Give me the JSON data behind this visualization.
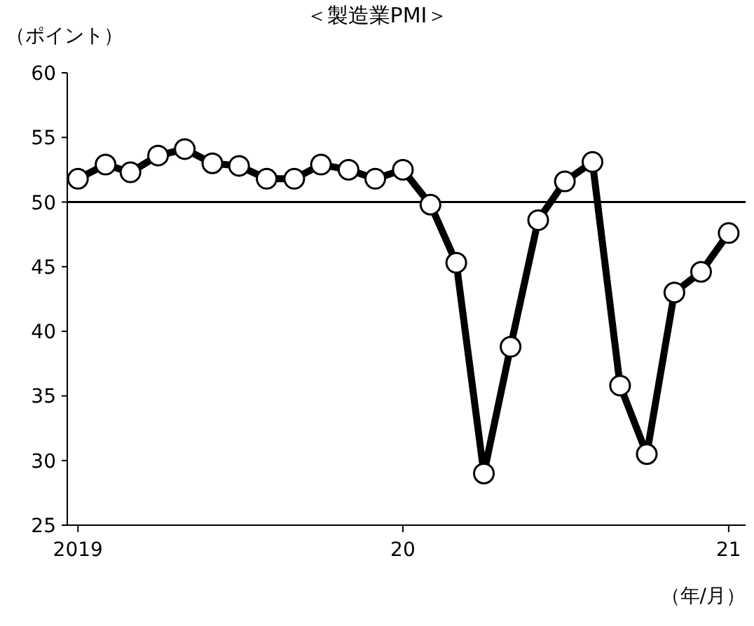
{
  "chart_data": {
    "type": "line",
    "title": "＜製造業PMI＞",
    "ylabel": "（ポイント）",
    "xlabel": "（年/月）",
    "x": [
      "2019-01",
      "2019-02",
      "2019-03",
      "2019-04",
      "2019-05",
      "2019-06",
      "2019-07",
      "2019-08",
      "2019-09",
      "2019-10",
      "2019-11",
      "2019-12",
      "2020-01",
      "2020-02",
      "2020-03",
      "2020-04",
      "2020-05",
      "2020-06",
      "2020-07",
      "2020-08",
      "2020-09",
      "2020-10",
      "2020-11",
      "2020-12",
      "2021-01"
    ],
    "series": [
      {
        "color": "#000000",
        "values": [
          51.8,
          52.9,
          52.3,
          53.6,
          54.1,
          53.0,
          52.8,
          51.8,
          51.8,
          52.9,
          52.5,
          51.8,
          52.5,
          49.8,
          45.3,
          29.0,
          38.8,
          48.6,
          51.6,
          53.1,
          35.8,
          30.5,
          43.0,
          44.6,
          47.6
        ]
      }
    ],
    "xlim": [
      "2018-12-20",
      "2021-01-20"
    ],
    "xticks": [
      {
        "value": "2019-01",
        "label": "2019"
      },
      {
        "value": "2020-01",
        "label": "20"
      },
      {
        "value": "2021-01",
        "label": "21"
      }
    ],
    "ylim": [
      25,
      60
    ],
    "yticks": [
      25,
      30,
      35,
      40,
      45,
      50,
      55,
      60
    ],
    "ref_lines": [
      {
        "axis": "y",
        "value": 50,
        "color": "#000000"
      }
    ],
    "marker": "circle",
    "line_style": "solid"
  }
}
